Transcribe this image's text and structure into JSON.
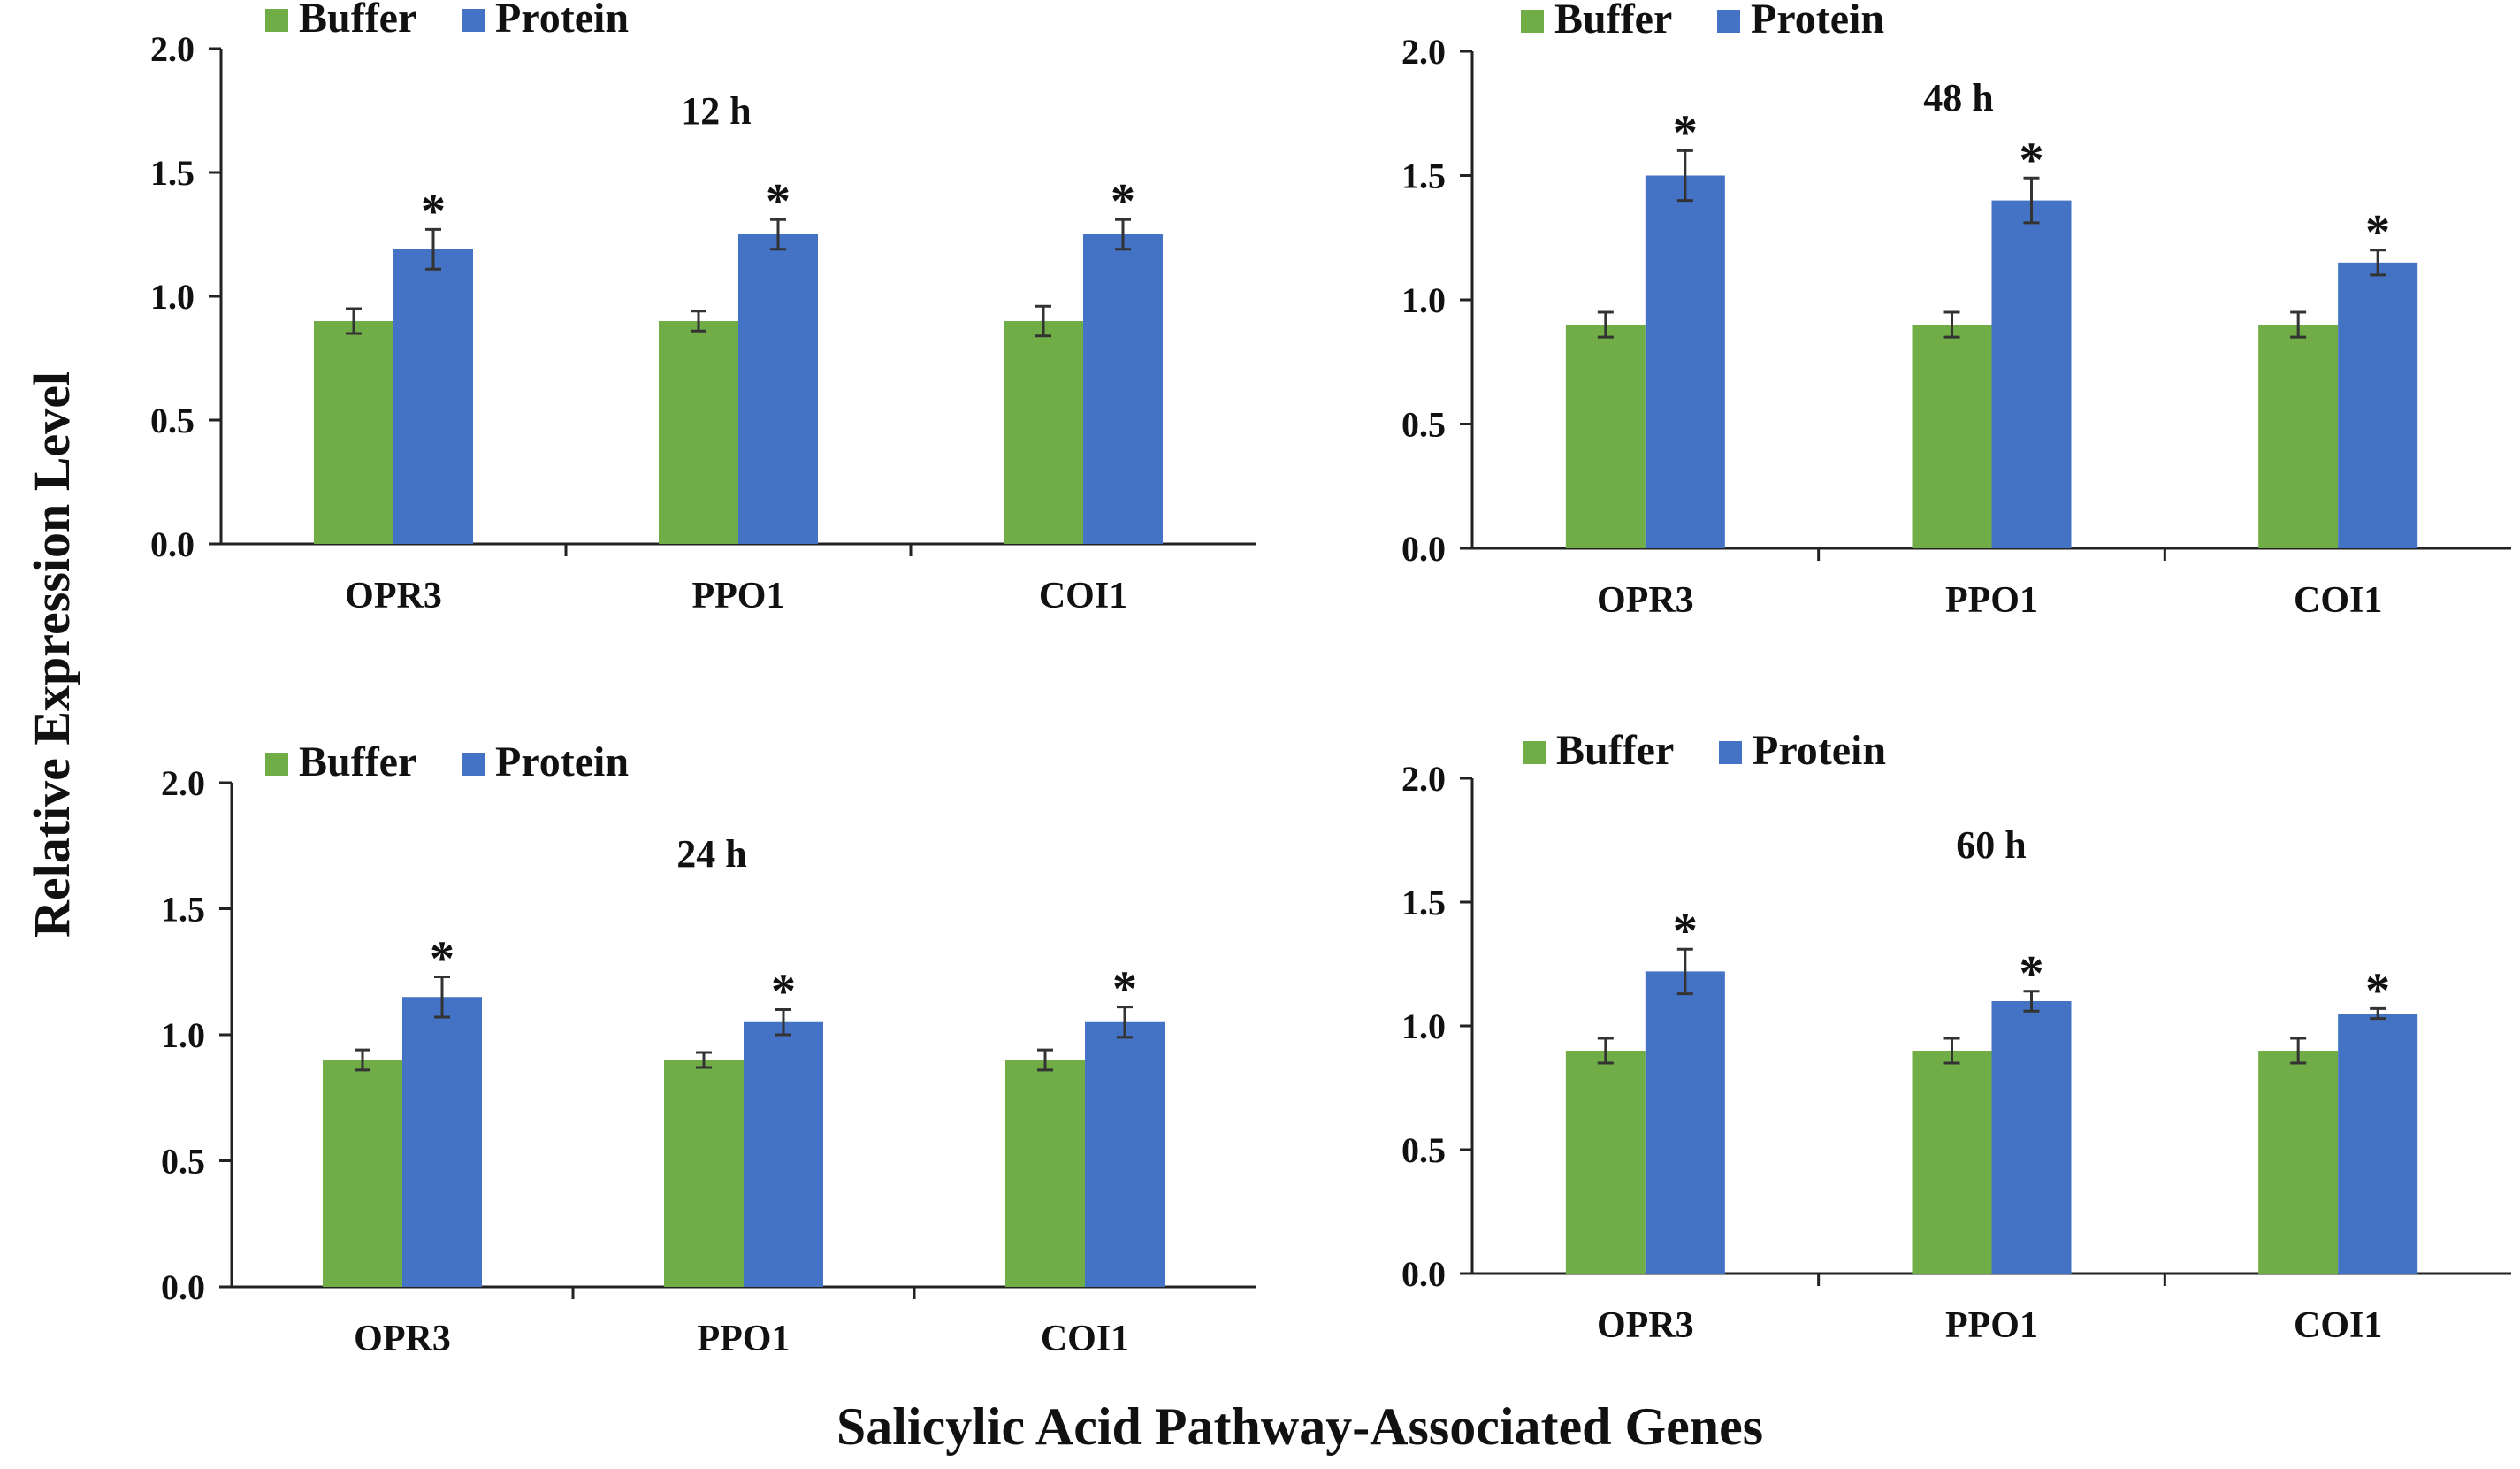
{
  "figure": {
    "ylabel": "Relative Expression Level",
    "xlabel": "Salicylic Acid Pathway-Associated Genes"
  },
  "colors": {
    "buffer": "#70AD47",
    "protein": "#4472C4",
    "axis": "#222222",
    "text": "#111111",
    "errorbar": "#333333"
  },
  "chart_data": [
    {
      "type": "bar",
      "title": "12 h",
      "categories": [
        "OPR3",
        "PPO1",
        "COI1"
      ],
      "series": [
        {
          "name": "Buffer",
          "values": [
            0.9,
            0.9,
            0.9
          ],
          "errors": [
            0.05,
            0.04,
            0.06
          ]
        },
        {
          "name": "Protein",
          "values": [
            1.19,
            1.25,
            1.25
          ],
          "errors": [
            0.08,
            0.06,
            0.06
          ]
        }
      ],
      "significance": [
        "*",
        "*",
        "*"
      ],
      "yticks": [
        "0.0",
        "0.5",
        "1.0",
        "1.5",
        "2.0"
      ],
      "ylim": [
        0,
        2.0
      ],
      "legend": "top-left"
    },
    {
      "type": "bar",
      "title": "48 h",
      "categories": [
        "OPR3",
        "PPO1",
        "COI1"
      ],
      "series": [
        {
          "name": "Buffer",
          "values": [
            0.9,
            0.9,
            0.9
          ],
          "errors": [
            0.05,
            0.05,
            0.05
          ]
        },
        {
          "name": "Protein",
          "values": [
            1.5,
            1.4,
            1.15
          ],
          "errors": [
            0.1,
            0.09,
            0.05
          ]
        }
      ],
      "significance": [
        "*",
        "*",
        "*"
      ],
      "yticks": [
        "0.0",
        "0.5",
        "1.0",
        "1.5",
        "2.0"
      ],
      "ylim": [
        0,
        2.0
      ],
      "legend": "top-left"
    },
    {
      "type": "bar",
      "title": "24 h",
      "categories": [
        "OPR3",
        "PPO1",
        "COI1"
      ],
      "series": [
        {
          "name": "Buffer",
          "values": [
            0.9,
            0.9,
            0.9
          ],
          "errors": [
            0.04,
            0.03,
            0.04
          ]
        },
        {
          "name": "Protein",
          "values": [
            1.15,
            1.05,
            1.05
          ],
          "errors": [
            0.08,
            0.05,
            0.06
          ]
        }
      ],
      "significance": [
        "*",
        "*",
        "*"
      ],
      "yticks": [
        "0.0",
        "0.5",
        "1.0",
        "1.5",
        "2.0"
      ],
      "ylim": [
        0,
        2.0
      ],
      "legend": "top-left"
    },
    {
      "type": "bar",
      "title": "60 h",
      "categories": [
        "OPR3",
        "PPO1",
        "COI1"
      ],
      "series": [
        {
          "name": "Buffer",
          "values": [
            0.9,
            0.9,
            0.9
          ],
          "errors": [
            0.05,
            0.05,
            0.05
          ]
        },
        {
          "name": "Protein",
          "values": [
            1.22,
            1.1,
            1.05
          ],
          "errors": [
            0.09,
            0.04,
            0.02
          ]
        }
      ],
      "significance": [
        "*",
        "*",
        "*"
      ],
      "yticks": [
        "0.0",
        "0.5",
        "1.0",
        "1.5",
        "2.0"
      ],
      "ylim": [
        0,
        2.0
      ],
      "legend": "top-left"
    }
  ]
}
